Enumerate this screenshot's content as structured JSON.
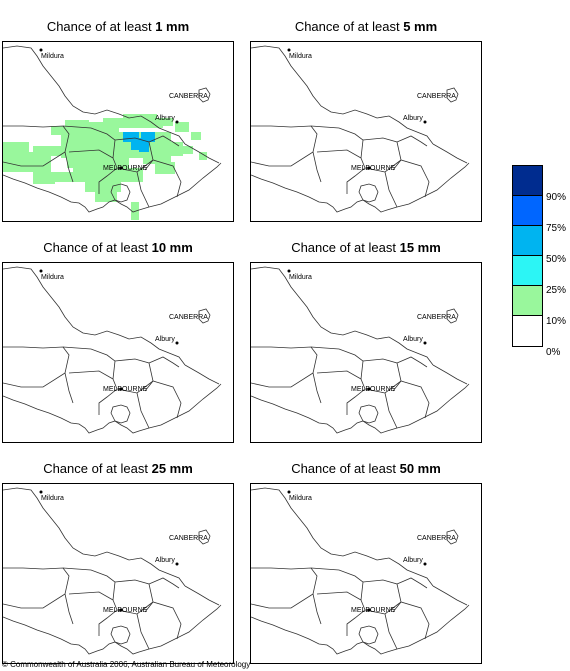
{
  "panels": [
    {
      "title_prefix": "Chance of at least ",
      "threshold": "1 mm",
      "has_shading": true
    },
    {
      "title_prefix": "Chance of at least ",
      "threshold": "5 mm",
      "has_shading": false
    },
    {
      "title_prefix": "Chance of at least ",
      "threshold": "10 mm",
      "has_shading": false
    },
    {
      "title_prefix": "Chance of at least ",
      "threshold": "15 mm",
      "has_shading": false
    },
    {
      "title_prefix": "Chance of at least ",
      "threshold": "25 mm",
      "has_shading": false
    },
    {
      "title_prefix": "Chance of at least ",
      "threshold": "50 mm",
      "has_shading": false
    }
  ],
  "places": {
    "mildura": "Mildura",
    "canberra": "CANBERRA",
    "albury": "Albury",
    "melbourne": "MELBOURNE"
  },
  "legend": {
    "labels": [
      "90%",
      "75%",
      "50%",
      "25%",
      "10%",
      "0%"
    ],
    "colors": [
      "#002c8f",
      "#0066ff",
      "#00b4f0",
      "#2cf5f5",
      "#99f79c",
      "#ffffff"
    ]
  },
  "copyright": "© Commonwealth of Australia 2006, Australian Bureau of Meteorology"
}
